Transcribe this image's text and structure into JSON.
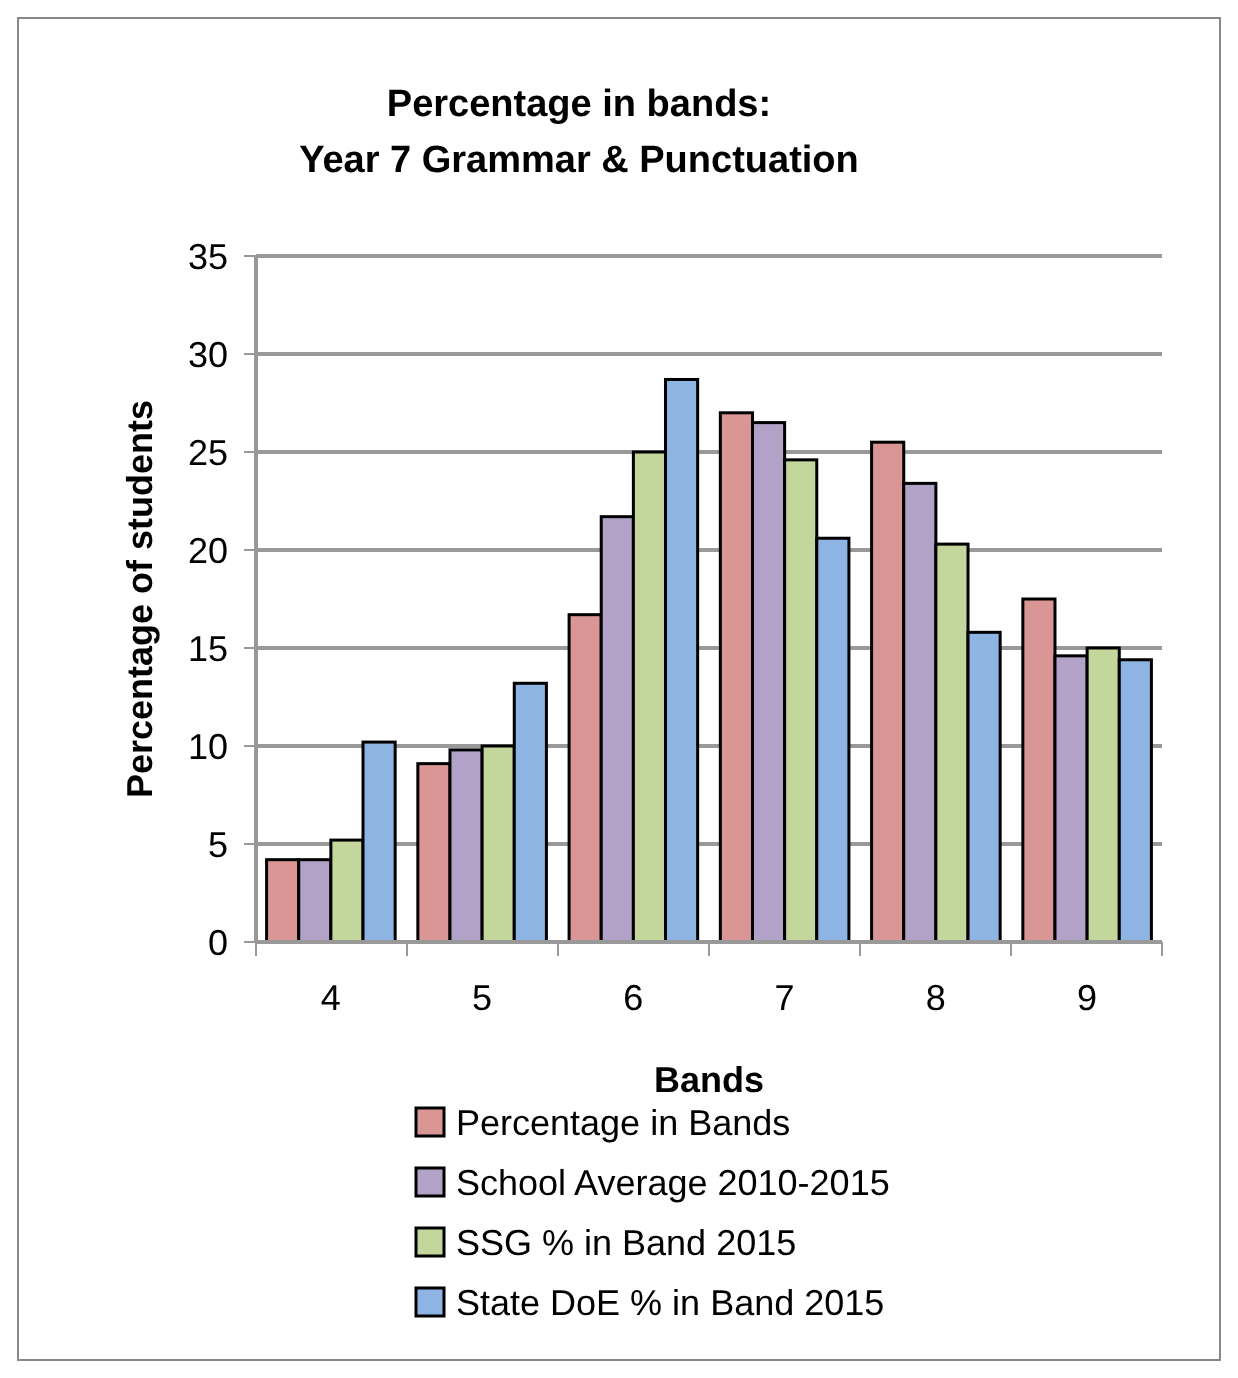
{
  "chart_data": {
    "type": "bar",
    "title": "Percentage in bands:\nYear 7 Grammar & Punctuation",
    "xlabel": "Bands",
    "ylabel": "Percentage of students",
    "categories": [
      "4",
      "5",
      "6",
      "7",
      "8",
      "9"
    ],
    "series": [
      {
        "name": "Percentage in Bands",
        "color": "#d99694",
        "values": [
          4.2,
          9.1,
          16.7,
          27.0,
          25.5,
          17.5
        ]
      },
      {
        "name": "School Average 2010-2015",
        "color": "#b3a2c7",
        "values": [
          4.2,
          9.8,
          21.7,
          26.5,
          23.4,
          14.6
        ]
      },
      {
        "name": "SSG % in Band 2015",
        "color": "#c3d69b",
        "values": [
          5.2,
          10.0,
          25.0,
          24.6,
          20.3,
          15.0
        ]
      },
      {
        "name": "State DoE % in Band 2015",
        "color": "#8eb4e3",
        "values": [
          10.2,
          13.2,
          28.7,
          20.6,
          15.8,
          14.4
        ]
      }
    ],
    "ylim": [
      0,
      35
    ],
    "yticks": [
      0,
      5,
      10,
      15,
      20,
      25,
      30,
      35
    ],
    "grid": "y",
    "legend": "bottom"
  }
}
